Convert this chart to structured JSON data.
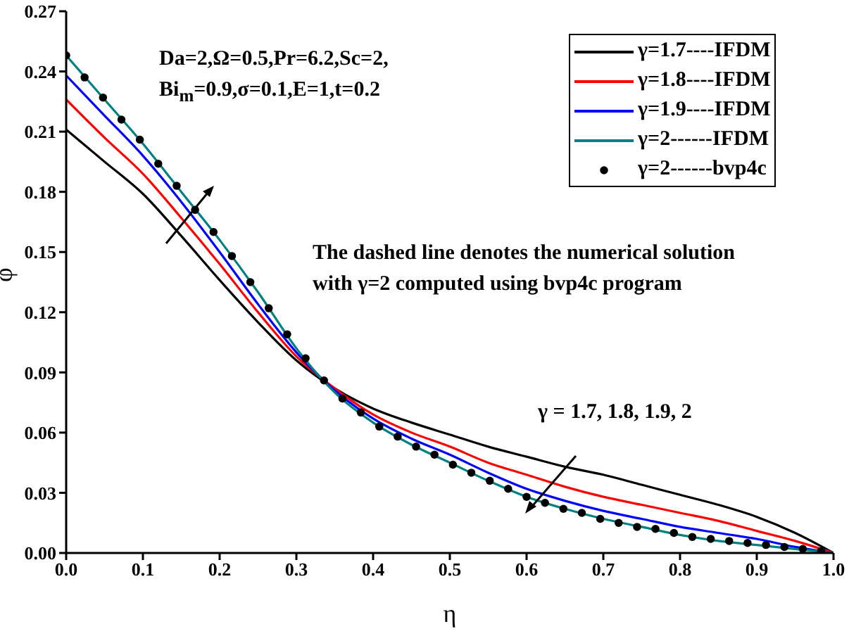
{
  "chart_data": {
    "type": "line",
    "xlabel": "η",
    "ylabel": "φ",
    "xlim": [
      0,
      1
    ],
    "ylim": [
      0,
      0.27
    ],
    "xticks": [
      {
        "value": 0,
        "label": "0.0"
      },
      {
        "value": 0.1,
        "label": "0.1"
      },
      {
        "value": 0.2,
        "label": "0.2"
      },
      {
        "value": 0.3,
        "label": "0.3"
      },
      {
        "value": 0.4,
        "label": "0.4"
      },
      {
        "value": 0.5,
        "label": "0.5"
      },
      {
        "value": 0.6,
        "label": "0.6"
      },
      {
        "value": 0.7,
        "label": "0.7"
      },
      {
        "value": 0.8,
        "label": "0.8"
      },
      {
        "value": 0.9,
        "label": "0.9"
      },
      {
        "value": 1,
        "label": "1.0"
      }
    ],
    "yticks": [
      {
        "value": 0,
        "label": "0.00"
      },
      0.03,
      0.06,
      0.09,
      0.12,
      0.15,
      0.18,
      0.21,
      0.24,
      0.27
    ],
    "x": [
      0,
      0.05,
      0.1,
      0.15,
      0.2,
      0.25,
      0.3,
      0.35,
      0.4,
      0.45,
      0.5,
      0.55,
      0.6,
      0.65,
      0.7,
      0.75,
      0.8,
      0.85,
      0.9,
      0.95,
      1
    ],
    "series": [
      {
        "name": "γ=1.7----IFDM",
        "color": "#000000",
        "values": [
          0.211,
          0.195,
          0.179,
          0.158,
          0.136,
          0.115,
          0.096,
          0.082,
          0.072,
          0.065,
          0.059,
          0.053,
          0.048,
          0.043,
          0.039,
          0.034,
          0.029,
          0.024,
          0.018,
          0.01,
          0
        ]
      },
      {
        "name": "γ=1.8----IFDM",
        "color": "#ff0000",
        "values": [
          0.226,
          0.207,
          0.189,
          0.167,
          0.144,
          0.12,
          0.098,
          0.082,
          0.069,
          0.06,
          0.053,
          0.045,
          0.039,
          0.033,
          0.028,
          0.024,
          0.02,
          0.016,
          0.011,
          0.006,
          0
        ]
      },
      {
        "name": "γ=1.9----IFDM",
        "color": "#0000ff",
        "values": [
          0.238,
          0.218,
          0.198,
          0.175,
          0.15,
          0.124,
          0.1,
          0.081,
          0.067,
          0.057,
          0.049,
          0.04,
          0.032,
          0.026,
          0.021,
          0.017,
          0.013,
          0.01,
          0.007,
          0.003,
          0
        ]
      },
      {
        "name": "γ=2------IFDM",
        "color": "#008080",
        "values": [
          0.248,
          0.226,
          0.204,
          0.18,
          0.156,
          0.13,
          0.102,
          0.08,
          0.065,
          0.054,
          0.045,
          0.036,
          0.028,
          0.022,
          0.017,
          0.013,
          0.009,
          0.006,
          0.004,
          0.002,
          0
        ]
      },
      {
        "name": "γ=2------bvp4c",
        "type": "scatter",
        "marker": "circle",
        "color": "#000000",
        "x": [
          0,
          0.024,
          0.048,
          0.072,
          0.096,
          0.12,
          0.144,
          0.168,
          0.192,
          0.216,
          0.24,
          0.264,
          0.288,
          0.312,
          0.336,
          0.36,
          0.384,
          0.408,
          0.432,
          0.456,
          0.48,
          0.504,
          0.528,
          0.552,
          0.576,
          0.6,
          0.624,
          0.648,
          0.672,
          0.696,
          0.72,
          0.744,
          0.768,
          0.792,
          0.816,
          0.84,
          0.864,
          0.888,
          0.912,
          0.936,
          0.96,
          0.984
        ],
        "values": [
          0.248,
          0.237,
          0.227,
          0.216,
          0.206,
          0.194,
          0.183,
          0.171,
          0.16,
          0.148,
          0.135,
          0.122,
          0.109,
          0.097,
          0.086,
          0.077,
          0.07,
          0.063,
          0.058,
          0.053,
          0.049,
          0.044,
          0.04,
          0.036,
          0.032,
          0.028,
          0.025,
          0.022,
          0.02,
          0.017,
          0.015,
          0.013,
          0.012,
          0.01,
          0.008,
          0.007,
          0.006,
          0.005,
          0.004,
          0.003,
          0.002,
          0.001
        ]
      }
    ],
    "marker": "none",
    "line_style": "solid",
    "legend": "top right",
    "grid": false,
    "annotations": [
      "Da=2,Ω=0.5,Pr=6.2,Sc=2,",
      "Bi$_{m}$=0.9,σ=0.1,E=1,t=0.2",
      "The dashed line denotes the numerical solution",
      "with γ=2 computed using bvp4c program",
      "γ = 1.7, 1.8, 1.9, 2"
    ]
  }
}
